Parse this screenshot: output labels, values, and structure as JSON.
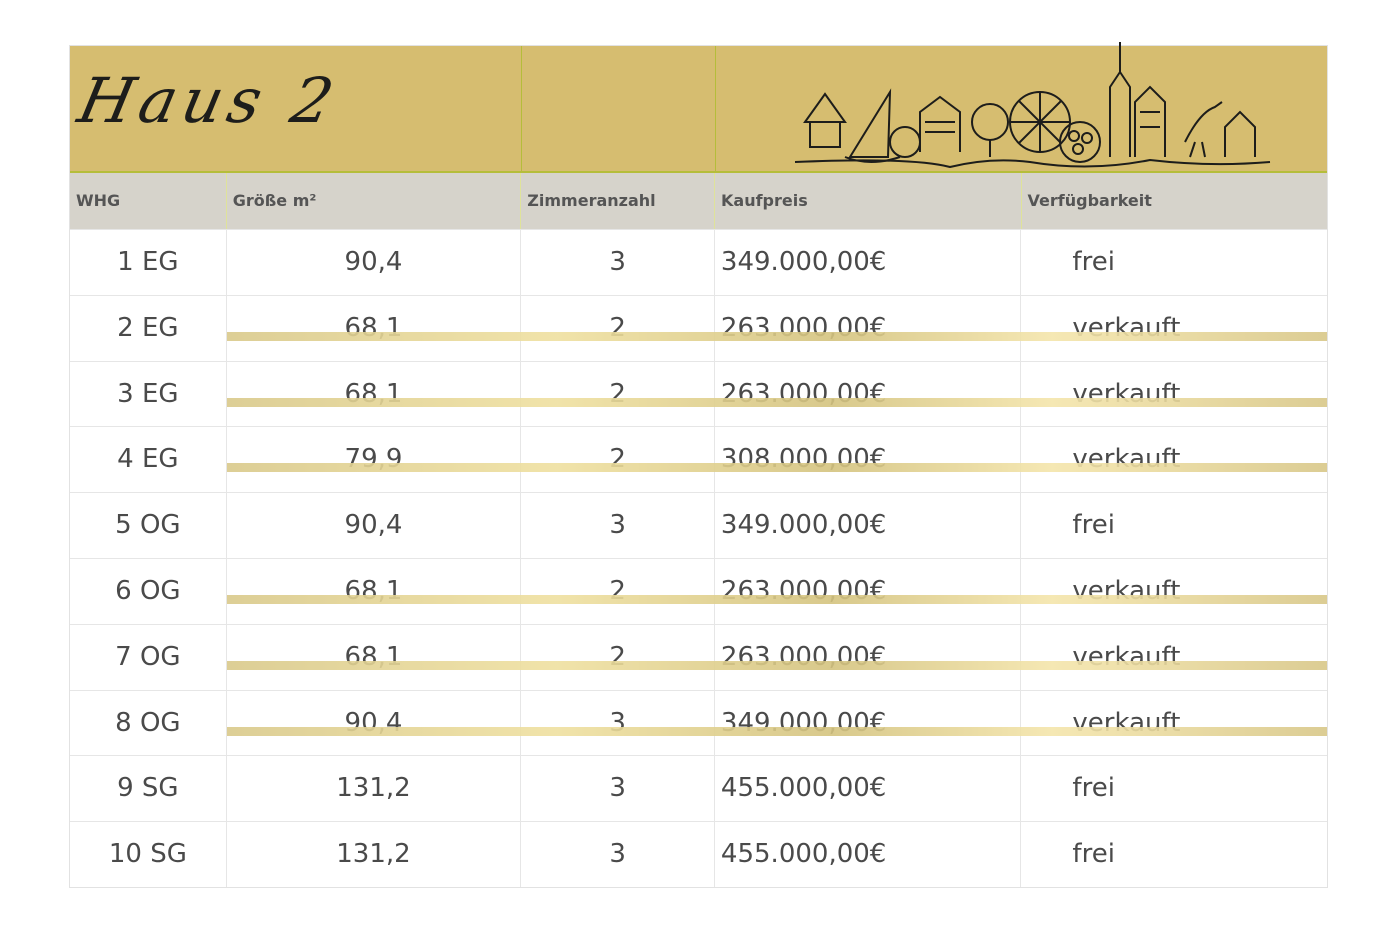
{
  "title": "Haus 2",
  "columns": [
    "WHG",
    "Größe m²",
    "Zimmeranzahl",
    "Kaufpreis",
    "Verfügbarkeit"
  ],
  "rows": [
    {
      "whg": "1 EG",
      "size": "90,4",
      "rooms": "3",
      "price": "349.000,00€",
      "status": "frei",
      "sold": false
    },
    {
      "whg": "2 EG",
      "size": "68,1",
      "rooms": "2",
      "price": "263.000,00€",
      "status": "verkauft",
      "sold": true
    },
    {
      "whg": "3 EG",
      "size": "68,1",
      "rooms": "2",
      "price": "263.000,00€",
      "status": "verkauft",
      "sold": true
    },
    {
      "whg": "4 EG",
      "size": "79,9",
      "rooms": "2",
      "price": "308.000,00€",
      "status": "verkauft",
      "sold": true
    },
    {
      "whg": "5 OG",
      "size": "90,4",
      "rooms": "3",
      "price": "349.000,00€",
      "status": "frei",
      "sold": false
    },
    {
      "whg": "6 OG",
      "size": "68,1",
      "rooms": "2",
      "price": "263.000,00€",
      "status": "verkauft",
      "sold": true
    },
    {
      "whg": "7 OG",
      "size": "68,1",
      "rooms": "2",
      "price": "263.000,00€",
      "status": "verkauft",
      "sold": true
    },
    {
      "whg": "8 OG",
      "size": "90,4",
      "rooms": "3",
      "price": "349.000,00€",
      "status": "verkauft",
      "sold": true
    },
    {
      "whg": "9 SG",
      "size": "131,2",
      "rooms": "3",
      "price": "455.000,00€",
      "status": "frei",
      "sold": false
    },
    {
      "whg": "10 SG",
      "size": "131,2",
      "rooms": "3",
      "price": "455.000,00€",
      "status": "frei",
      "sold": false
    }
  ],
  "colors": {
    "banner": "#d6bd70",
    "header": "#d6d3cb",
    "strike": "#e6d592"
  }
}
